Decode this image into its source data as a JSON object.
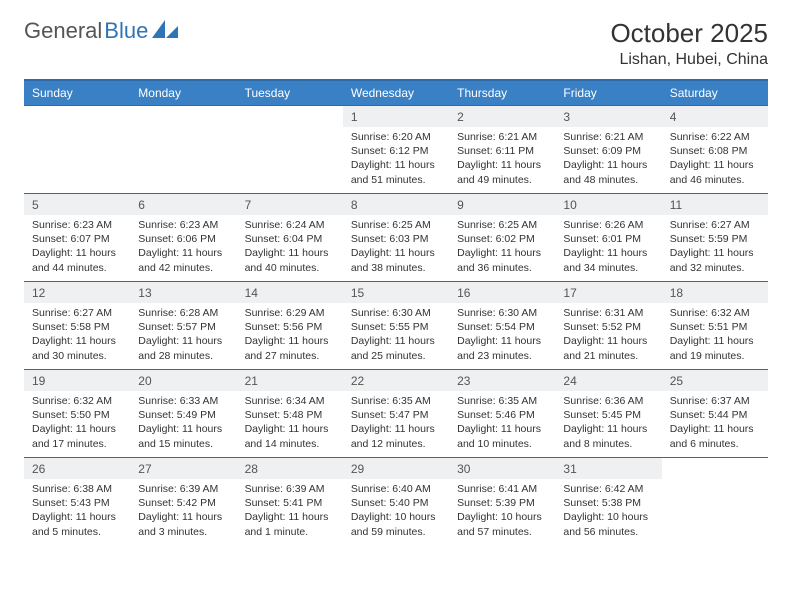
{
  "brand": {
    "part1": "General",
    "part2": "Blue"
  },
  "title": "October 2025",
  "location": "Lishan, Hubei, China",
  "colors": {
    "header_bg": "#3a80c4",
    "header_border": "#2f6aa8",
    "daynum_bg": "#eef0f2",
    "brand_blue": "#2f75b5",
    "text": "#333333"
  },
  "weekdays": [
    "Sunday",
    "Monday",
    "Tuesday",
    "Wednesday",
    "Thursday",
    "Friday",
    "Saturday"
  ],
  "cells": [
    {
      "empty": true
    },
    {
      "empty": true
    },
    {
      "empty": true
    },
    {
      "n": "1",
      "sr": "6:20 AM",
      "ss": "6:12 PM",
      "dl": "11 hours and 51 minutes."
    },
    {
      "n": "2",
      "sr": "6:21 AM",
      "ss": "6:11 PM",
      "dl": "11 hours and 49 minutes."
    },
    {
      "n": "3",
      "sr": "6:21 AM",
      "ss": "6:09 PM",
      "dl": "11 hours and 48 minutes."
    },
    {
      "n": "4",
      "sr": "6:22 AM",
      "ss": "6:08 PM",
      "dl": "11 hours and 46 minutes."
    },
    {
      "n": "5",
      "sr": "6:23 AM",
      "ss": "6:07 PM",
      "dl": "11 hours and 44 minutes."
    },
    {
      "n": "6",
      "sr": "6:23 AM",
      "ss": "6:06 PM",
      "dl": "11 hours and 42 minutes."
    },
    {
      "n": "7",
      "sr": "6:24 AM",
      "ss": "6:04 PM",
      "dl": "11 hours and 40 minutes."
    },
    {
      "n": "8",
      "sr": "6:25 AM",
      "ss": "6:03 PM",
      "dl": "11 hours and 38 minutes."
    },
    {
      "n": "9",
      "sr": "6:25 AM",
      "ss": "6:02 PM",
      "dl": "11 hours and 36 minutes."
    },
    {
      "n": "10",
      "sr": "6:26 AM",
      "ss": "6:01 PM",
      "dl": "11 hours and 34 minutes."
    },
    {
      "n": "11",
      "sr": "6:27 AM",
      "ss": "5:59 PM",
      "dl": "11 hours and 32 minutes."
    },
    {
      "n": "12",
      "sr": "6:27 AM",
      "ss": "5:58 PM",
      "dl": "11 hours and 30 minutes."
    },
    {
      "n": "13",
      "sr": "6:28 AM",
      "ss": "5:57 PM",
      "dl": "11 hours and 28 minutes."
    },
    {
      "n": "14",
      "sr": "6:29 AM",
      "ss": "5:56 PM",
      "dl": "11 hours and 27 minutes."
    },
    {
      "n": "15",
      "sr": "6:30 AM",
      "ss": "5:55 PM",
      "dl": "11 hours and 25 minutes."
    },
    {
      "n": "16",
      "sr": "6:30 AM",
      "ss": "5:54 PM",
      "dl": "11 hours and 23 minutes."
    },
    {
      "n": "17",
      "sr": "6:31 AM",
      "ss": "5:52 PM",
      "dl": "11 hours and 21 minutes."
    },
    {
      "n": "18",
      "sr": "6:32 AM",
      "ss": "5:51 PM",
      "dl": "11 hours and 19 minutes."
    },
    {
      "n": "19",
      "sr": "6:32 AM",
      "ss": "5:50 PM",
      "dl": "11 hours and 17 minutes."
    },
    {
      "n": "20",
      "sr": "6:33 AM",
      "ss": "5:49 PM",
      "dl": "11 hours and 15 minutes."
    },
    {
      "n": "21",
      "sr": "6:34 AM",
      "ss": "5:48 PM",
      "dl": "11 hours and 14 minutes."
    },
    {
      "n": "22",
      "sr": "6:35 AM",
      "ss": "5:47 PM",
      "dl": "11 hours and 12 minutes."
    },
    {
      "n": "23",
      "sr": "6:35 AM",
      "ss": "5:46 PM",
      "dl": "11 hours and 10 minutes."
    },
    {
      "n": "24",
      "sr": "6:36 AM",
      "ss": "5:45 PM",
      "dl": "11 hours and 8 minutes."
    },
    {
      "n": "25",
      "sr": "6:37 AM",
      "ss": "5:44 PM",
      "dl": "11 hours and 6 minutes."
    },
    {
      "n": "26",
      "sr": "6:38 AM",
      "ss": "5:43 PM",
      "dl": "11 hours and 5 minutes."
    },
    {
      "n": "27",
      "sr": "6:39 AM",
      "ss": "5:42 PM",
      "dl": "11 hours and 3 minutes."
    },
    {
      "n": "28",
      "sr": "6:39 AM",
      "ss": "5:41 PM",
      "dl": "11 hours and 1 minute."
    },
    {
      "n": "29",
      "sr": "6:40 AM",
      "ss": "5:40 PM",
      "dl": "10 hours and 59 minutes."
    },
    {
      "n": "30",
      "sr": "6:41 AM",
      "ss": "5:39 PM",
      "dl": "10 hours and 57 minutes."
    },
    {
      "n": "31",
      "sr": "6:42 AM",
      "ss": "5:38 PM",
      "dl": "10 hours and 56 minutes."
    },
    {
      "empty": true
    }
  ],
  "labels": {
    "sunrise": "Sunrise:",
    "sunset": "Sunset:",
    "daylight": "Daylight:"
  }
}
